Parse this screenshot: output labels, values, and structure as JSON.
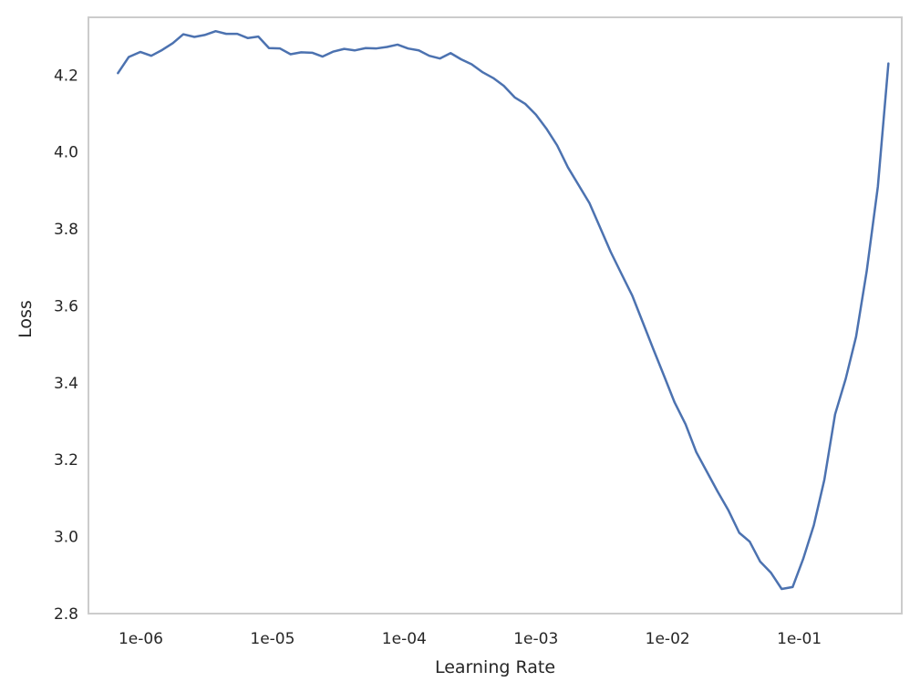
{
  "chart_data": {
    "type": "line",
    "title": "",
    "xlabel": "Learning Rate",
    "ylabel": "Loss",
    "xscale": "log",
    "xlim": [
      4e-07,
      0.6
    ],
    "ylim": [
      2.8,
      4.35
    ],
    "grid": false,
    "legend": "none",
    "x_ticks": [
      {
        "value": 1e-06,
        "label": "1e-06"
      },
      {
        "value": 1e-05,
        "label": "1e-05"
      },
      {
        "value": 0.0001,
        "label": "1e-04"
      },
      {
        "value": 0.001,
        "label": "1e-03"
      },
      {
        "value": 0.01,
        "label": "1e-02"
      },
      {
        "value": 0.1,
        "label": "1e-01"
      }
    ],
    "y_ticks": [
      {
        "value": 2.8,
        "label": "2.8"
      },
      {
        "value": 3.0,
        "label": "3.0"
      },
      {
        "value": 3.2,
        "label": "3.2"
      },
      {
        "value": 3.4,
        "label": "3.4"
      },
      {
        "value": 3.6,
        "label": "3.6"
      },
      {
        "value": 3.8,
        "label": "3.8"
      },
      {
        "value": 4.0,
        "label": "4.0"
      },
      {
        "value": 4.2,
        "label": "4.2"
      }
    ],
    "series": [
      {
        "color": "#4c72b0",
        "points": [
          [
            6.7e-07,
            4.205
          ],
          [
            8.1e-07,
            4.247
          ],
          [
            9.9e-07,
            4.26
          ],
          [
            1.2e-06,
            4.25
          ],
          [
            1.45e-06,
            4.265
          ],
          [
            1.75e-06,
            4.283
          ],
          [
            2.1e-06,
            4.306
          ],
          [
            2.55e-06,
            4.299
          ],
          [
            3.05e-06,
            4.304
          ],
          [
            3.7e-06,
            4.314
          ],
          [
            4.45e-06,
            4.307
          ],
          [
            5.4e-06,
            4.307
          ],
          [
            6.5e-06,
            4.296
          ],
          [
            7.8e-06,
            4.3
          ],
          [
            9.4e-06,
            4.27
          ],
          [
            1.14e-05,
            4.269
          ],
          [
            1.37e-05,
            4.254
          ],
          [
            1.65e-05,
            4.259
          ],
          [
            2e-05,
            4.258
          ],
          [
            2.4e-05,
            4.248
          ],
          [
            2.9e-05,
            4.261
          ],
          [
            3.5e-05,
            4.268
          ],
          [
            4.2e-05,
            4.264
          ],
          [
            5.1e-05,
            4.27
          ],
          [
            6.1e-05,
            4.269
          ],
          [
            7.4e-05,
            4.273
          ],
          [
            8.9e-05,
            4.279
          ],
          [
            0.000107,
            4.269
          ],
          [
            0.000129,
            4.264
          ],
          [
            0.000155,
            4.25
          ],
          [
            0.000187,
            4.243
          ],
          [
            0.000225,
            4.257
          ],
          [
            0.00027,
            4.241
          ],
          [
            0.000325,
            4.228
          ],
          [
            0.000395,
            4.207
          ],
          [
            0.000475,
            4.192
          ],
          [
            0.00057,
            4.172
          ],
          [
            0.00069,
            4.142
          ],
          [
            0.00083,
            4.125
          ],
          [
            0.001,
            4.097
          ],
          [
            0.0012,
            4.061
          ],
          [
            0.00145,
            4.017
          ],
          [
            0.00175,
            3.96
          ],
          [
            0.0021,
            3.915
          ],
          [
            0.00255,
            3.867
          ],
          [
            0.00305,
            3.806
          ],
          [
            0.0037,
            3.74
          ],
          [
            0.00445,
            3.684
          ],
          [
            0.0054,
            3.626
          ],
          [
            0.0065,
            3.556
          ],
          [
            0.0078,
            3.487
          ],
          [
            0.0094,
            3.418
          ],
          [
            0.0113,
            3.349
          ],
          [
            0.0137,
            3.292
          ],
          [
            0.0165,
            3.22
          ],
          [
            0.02,
            3.167
          ],
          [
            0.024,
            3.117
          ],
          [
            0.029,
            3.068
          ],
          [
            0.035,
            3.01
          ],
          [
            0.042,
            2.987
          ],
          [
            0.0505,
            2.935
          ],
          [
            0.061,
            2.906
          ],
          [
            0.0735,
            2.864
          ],
          [
            0.089,
            2.869
          ],
          [
            0.107,
            2.942
          ],
          [
            0.129,
            3.03
          ],
          [
            0.155,
            3.148
          ],
          [
            0.187,
            3.318
          ],
          [
            0.225,
            3.41
          ],
          [
            0.27,
            3.52
          ],
          [
            0.325,
            3.69
          ],
          [
            0.395,
            3.91
          ],
          [
            0.475,
            4.23
          ]
        ]
      }
    ]
  }
}
